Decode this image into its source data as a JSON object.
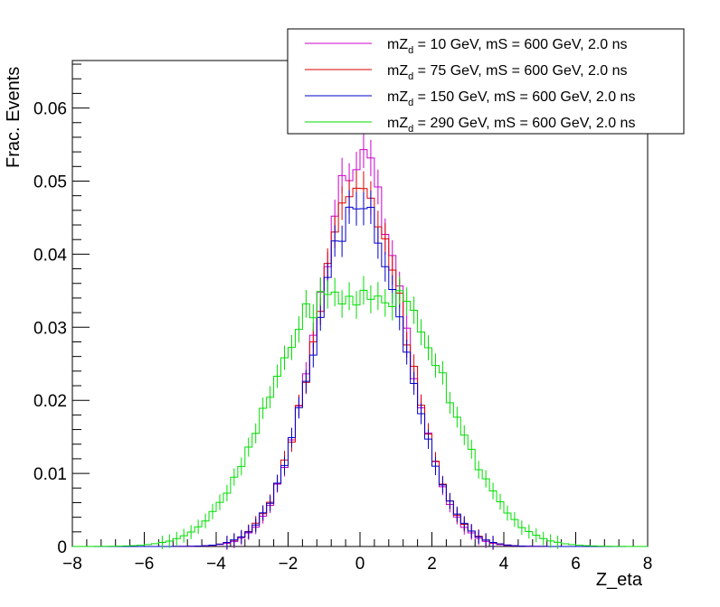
{
  "chart_data": {
    "type": "line",
    "title": "",
    "xlabel": "Z_eta",
    "ylabel": "Frac. Events",
    "xlim": [
      -8,
      8
    ],
    "ylim": [
      0,
      0.0665
    ],
    "x_ticks": [
      "−8",
      "−6",
      "−4",
      "−2",
      "0",
      "2",
      "4",
      "6",
      "8"
    ],
    "y_ticks": [
      "0",
      "0.01",
      "0.02",
      "0.03",
      "0.04",
      "0.05",
      "0.06"
    ],
    "legend_position": "top-right",
    "legend": [
      {
        "prefix": "mZ",
        "sub": "d",
        "suffix": " = 10 GeV, mS = 600 GeV, 2.0 ns",
        "color": "#cc00cc"
      },
      {
        "prefix": "mZ",
        "sub": "d",
        "suffix": " = 75 GeV, mS = 600 GeV, 2.0 ns",
        "color": "#dd0000"
      },
      {
        "prefix": "mZ",
        "sub": "d",
        "suffix": " = 150 GeV, mS = 600 GeV, 2.0 ns",
        "color": "#0000cc"
      },
      {
        "prefix": "mZ",
        "sub": "d",
        "suffix": " = 290 GeV, mS = 600 GeV, 2.0 ns",
        "color": "#00dd00"
      }
    ],
    "bins": {
      "min": -8,
      "max": 8,
      "count": 80
    },
    "series": [
      {
        "color": "#cc00cc",
        "sigma": 1.19,
        "peak": 0.053
      },
      {
        "color": "#dd0000",
        "sigma": 1.23,
        "peak": 0.0495
      },
      {
        "color": "#0000cc",
        "sigma": 1.24,
        "peak": 0.047
      },
      {
        "color": "#00dd00",
        "sigma": 1.6,
        "peak": 0.034,
        "flat_top": true
      }
    ]
  }
}
